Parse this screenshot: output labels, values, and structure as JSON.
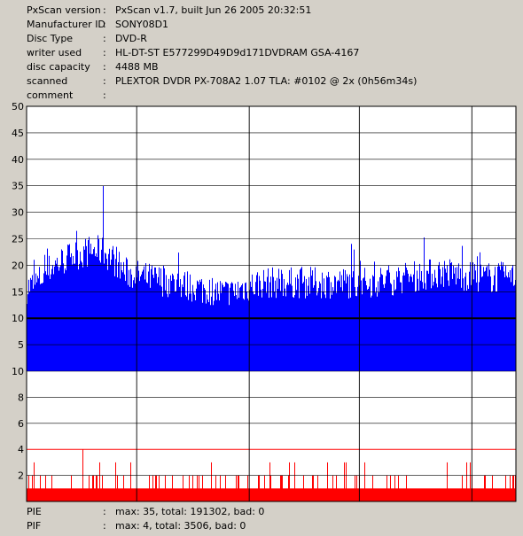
{
  "header": [
    {
      "label": "PxScan version",
      "value": "PxScan v1.7, built Jun 26 2005 20:32:51"
    },
    {
      "label": "Manufacturer ID",
      "value": "SONY08D1"
    },
    {
      "label": "Disc Type",
      "value": "DVD-R"
    },
    {
      "label": "writer used",
      "value": "HL-DT-ST E577299D49D9d171DVDRAM GSA-4167"
    },
    {
      "label": "disc capacity",
      "value": "4488 MB"
    },
    {
      "label": "scanned",
      "value": "PLEXTOR DVDR PX-708A2 1.07 TLA: #0102 @ 2x (0h56m34s)"
    },
    {
      "label": "comment",
      "value": ""
    }
  ],
  "footer": [
    {
      "label": "PIE",
      "value": "max: 35, total: 191302, bad: 0"
    },
    {
      "label": "PIF",
      "value": "max: 4, total: 3506, bad: 0"
    }
  ],
  "chart_data": [
    {
      "type": "bar",
      "series": [
        {
          "name": "PIE",
          "color": "#0000ff",
          "profile_x": [
            0,
            0.02,
            0.05,
            0.09,
            0.13,
            0.15,
            0.17,
            0.19,
            0.2,
            0.24,
            0.3,
            0.35,
            0.4,
            0.42,
            0.44,
            0.48,
            0.55,
            0.62,
            0.7,
            0.78,
            0.85,
            0.92,
            0.96,
            1.0
          ],
          "profile_y": [
            16,
            17,
            20,
            22,
            23,
            23,
            22,
            20,
            19,
            18,
            17,
            16,
            15,
            15,
            16,
            17,
            17,
            17,
            17,
            18,
            19,
            18,
            18,
            18
          ],
          "max": 35,
          "max_at": 0.155
        }
      ],
      "ylim": [
        0,
        50
      ],
      "yticks": [
        5,
        10,
        15,
        20,
        25,
        30,
        35,
        40,
        45,
        50
      ],
      "ytick_labels": [
        "5",
        "10",
        "15",
        "20",
        "25",
        "30",
        "35",
        "40",
        "45",
        "50"
      ],
      "threshold": 10,
      "grid": true
    },
    {
      "type": "bar",
      "series": [
        {
          "name": "PIF",
          "color": "#ff0000",
          "baseline": 1,
          "max": 4,
          "max_at": 0.115
        }
      ],
      "ylim": [
        0,
        10
      ],
      "yticks": [
        2,
        4,
        6,
        8,
        10
      ],
      "ytick_labels": [
        "2",
        "4",
        "6",
        "8",
        "10"
      ],
      "threshold": 4,
      "grid": true
    }
  ]
}
